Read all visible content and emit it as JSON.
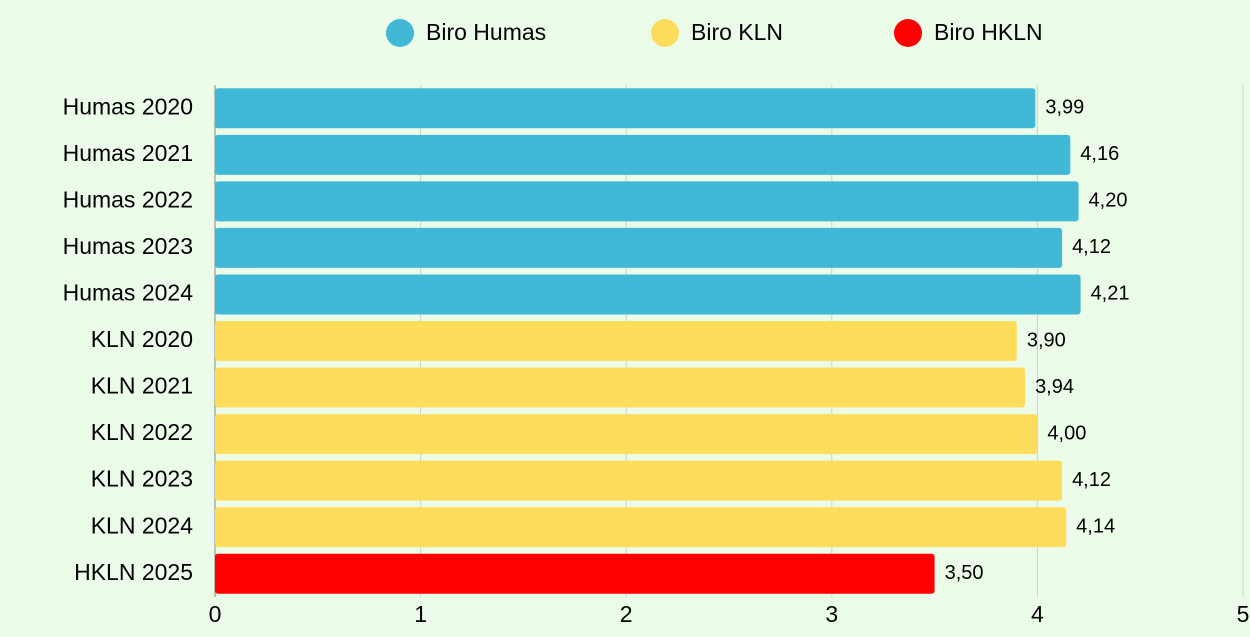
{
  "chart_data": {
    "type": "bar",
    "orientation": "horizontal",
    "categories": [
      "Humas 2020",
      "Humas 2021",
      "Humas 2022",
      "Humas 2023",
      "Humas 2024",
      "KLN 2020",
      "KLN 2021",
      "KLN 2022",
      "KLN 2023",
      "KLN 2024",
      "HKLN 2025"
    ],
    "series": [
      {
        "name": "Biro Humas",
        "color": "#41b8d5",
        "values": [
          3.99,
          4.16,
          4.2,
          4.12,
          4.21,
          null,
          null,
          null,
          null,
          null,
          null
        ],
        "value_labels": [
          "3,99",
          "4,16",
          "4,20",
          "4,12",
          "4,21",
          null,
          null,
          null,
          null,
          null,
          null
        ]
      },
      {
        "name": "Biro KLN",
        "color": "#ffdd5c",
        "values": [
          null,
          null,
          null,
          null,
          null,
          3.9,
          3.94,
          4.0,
          4.12,
          4.14,
          null
        ],
        "value_labels": [
          null,
          null,
          null,
          null,
          null,
          "3,90",
          "3,94",
          "4,00",
          "4,12",
          "4,14",
          null
        ]
      },
      {
        "name": "Biro HKLN",
        "color": "#ff0000",
        "values": [
          null,
          null,
          null,
          null,
          null,
          null,
          null,
          null,
          null,
          null,
          3.5
        ],
        "value_labels": [
          null,
          null,
          null,
          null,
          null,
          null,
          null,
          null,
          null,
          null,
          "3,50"
        ]
      }
    ],
    "xlim": [
      0,
      5
    ],
    "xticks": [
      0,
      1,
      2,
      3,
      4,
      5
    ],
    "grid": true,
    "legend": "top"
  }
}
